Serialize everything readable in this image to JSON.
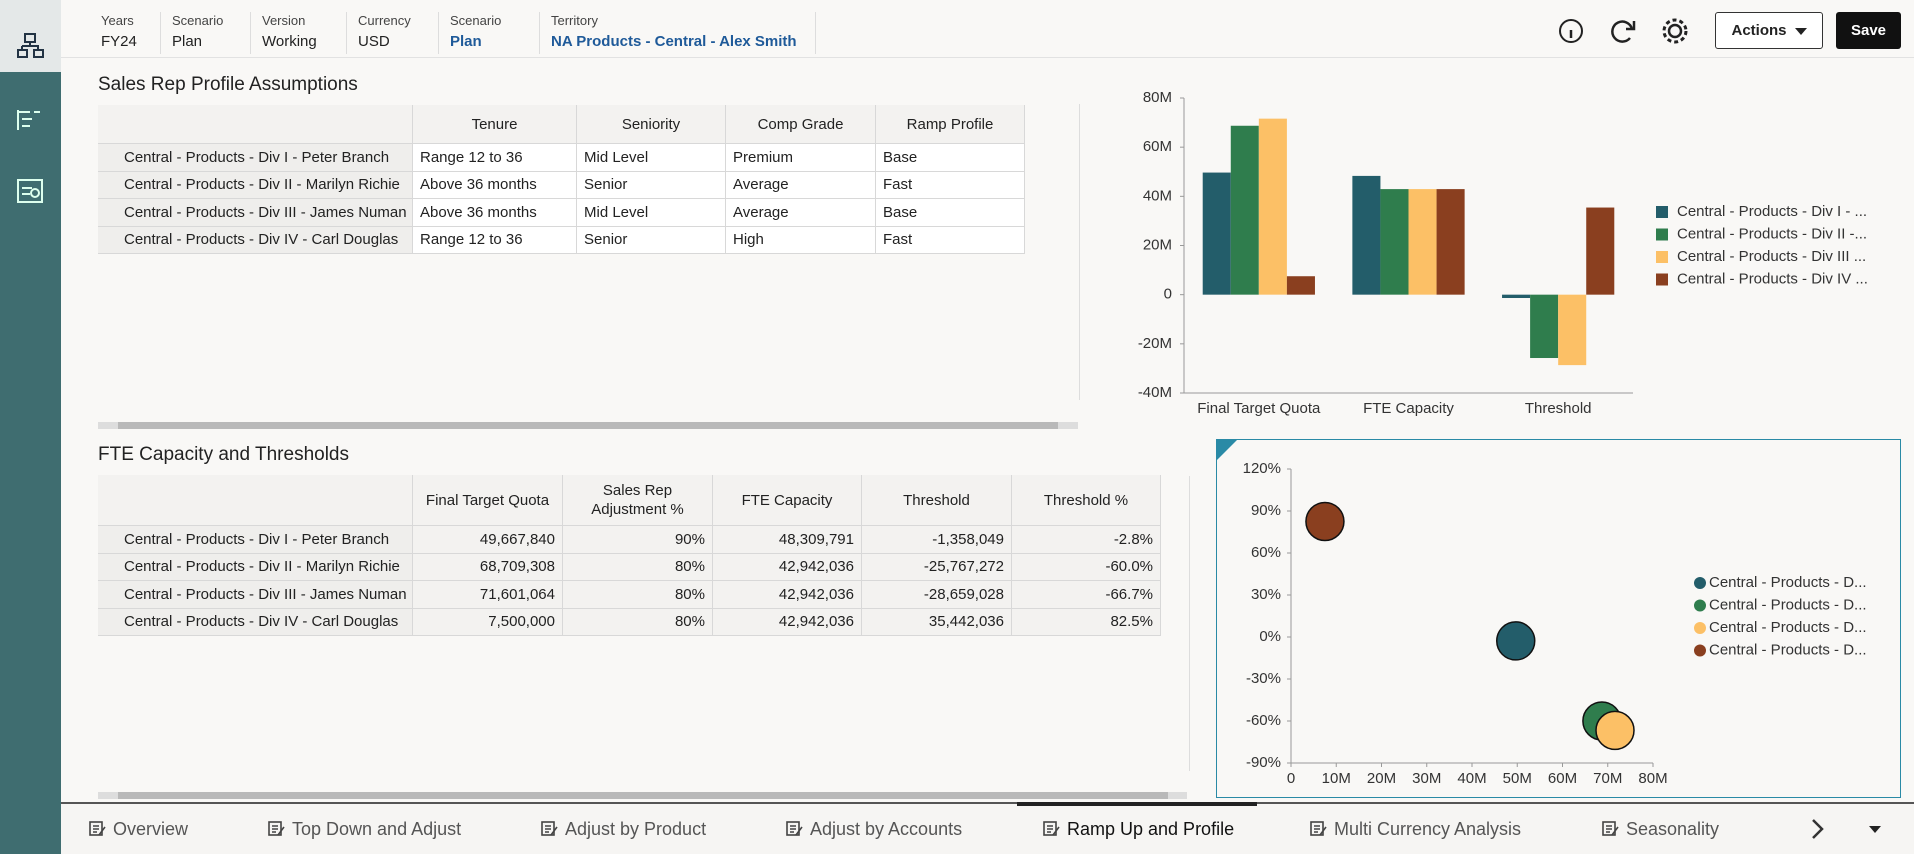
{
  "header": {
    "filters": [
      {
        "label": "Years",
        "value": "FY24"
      },
      {
        "label": "Scenario",
        "value": "Plan"
      },
      {
        "label": "Version",
        "value": "Working"
      },
      {
        "label": "Currency",
        "value": "USD"
      },
      {
        "label": "Scenario",
        "value": "Plan"
      },
      {
        "label": "Territory",
        "value": "NA Products - Central - Alex Smith"
      }
    ]
  },
  "buttons": {
    "actions": "Actions",
    "save": "Save"
  },
  "tables": [
    {
      "title": "Sales Rep Profile Assumptions",
      "columns": [
        "Tenure",
        "Seniority",
        "Comp Grade",
        "Ramp Profile"
      ],
      "rows": [
        {
          "label": "Central - Products - Div I - Peter Branch",
          "cells": [
            "Range 12 to 36",
            "Mid Level",
            "Premium",
            "Base"
          ]
        },
        {
          "label": "Central - Products - Div II - Marilyn Richie",
          "cells": [
            "Above 36 months",
            "Senior",
            "Average",
            "Fast"
          ]
        },
        {
          "label": "Central - Products - Div III - James Numan",
          "cells": [
            "Above 36 months",
            "Mid Level",
            "Average",
            "Base"
          ]
        },
        {
          "label": "Central - Products - Div IV - Carl Douglas",
          "cells": [
            "Range 12 to 36",
            "Senior",
            "High",
            "Fast"
          ]
        }
      ]
    },
    {
      "title": "FTE Capacity and Thresholds",
      "columns": [
        "Final Target Quota",
        "Sales Rep Adjustment %",
        "FTE Capacity",
        "Threshold",
        "Threshold %"
      ],
      "rows": [
        {
          "label": "Central - Products - Div I - Peter Branch",
          "cells": [
            "49,667,840",
            "90%",
            "48,309,791",
            "-1,358,049",
            "-2.8%"
          ]
        },
        {
          "label": "Central - Products - Div II - Marilyn Richie",
          "cells": [
            "68,709,308",
            "80%",
            "42,942,036",
            "-25,767,272",
            "-60.0%"
          ]
        },
        {
          "label": "Central - Products - Div III - James Numan",
          "cells": [
            "71,601,064",
            "80%",
            "42,942,036",
            "-28,659,028",
            "-66.7%"
          ]
        },
        {
          "label": "Central - Products - Div IV - Carl Douglas",
          "cells": [
            "7,500,000",
            "80%",
            "42,942,036",
            "35,442,036",
            "82.5%"
          ]
        }
      ]
    }
  ],
  "chart_data": [
    {
      "type": "bar",
      "categories": [
        "Final Target Quota",
        "FTE Capacity",
        "Threshold"
      ],
      "series": [
        {
          "name": "Central - Products - Div I - ...",
          "color": "#235d6a",
          "values": [
            49.66784,
            48.309791,
            -1.358049
          ]
        },
        {
          "name": "Central - Products - Div II -...",
          "color": "#2f7d4d",
          "values": [
            68.709308,
            42.942036,
            -25.767272
          ]
        },
        {
          "name": "Central - Products - Div III ...",
          "color": "#fcc066",
          "values": [
            71.601064,
            42.942036,
            -28.659028
          ]
        },
        {
          "name": "Central - Products - Div IV ...",
          "color": "#8a3f1f",
          "values": [
            7.5,
            42.942036,
            35.442036
          ]
        }
      ],
      "ylim": [
        -40,
        80
      ],
      "yticks": [
        {
          "value": 80,
          "label": "80M"
        },
        {
          "value": 60,
          "label": "60M"
        },
        {
          "value": 40,
          "label": "40M"
        },
        {
          "value": 20,
          "label": "20M"
        },
        0,
        {
          "value": -20,
          "label": "-20M"
        },
        {
          "value": -40,
          "label": "-40M"
        }
      ]
    },
    {
      "type": "scatter",
      "series": [
        {
          "name": "Central - Products - D...",
          "color": "#235d6a",
          "x": [
            49.66784
          ],
          "values": [
            -2.8
          ]
        },
        {
          "name": "Central - Products - D...",
          "color": "#2f7d4d",
          "x": [
            68.709308
          ],
          "values": [
            -60.0
          ]
        },
        {
          "name": "Central - Products - D...",
          "color": "#fcc066",
          "x": [
            71.601064
          ],
          "values": [
            -66.7
          ]
        },
        {
          "name": "Central - Products - D...",
          "color": "#8a3f1f",
          "x": [
            7.5
          ],
          "values": [
            82.5
          ]
        }
      ],
      "xlim": [
        0,
        80
      ],
      "xticks": [
        0,
        {
          "value": 10,
          "label": "10M"
        },
        {
          "value": 20,
          "label": "20M"
        },
        {
          "value": 30,
          "label": "30M"
        },
        {
          "value": 40,
          "label": "40M"
        },
        {
          "value": 50,
          "label": "50M"
        },
        {
          "value": 60,
          "label": "60M"
        },
        {
          "value": 70,
          "label": "70M"
        },
        {
          "value": 80,
          "label": "80M"
        }
      ],
      "ylim": [
        -90,
        120
      ],
      "yticks": [
        {
          "value": 120,
          "label": "120%"
        },
        {
          "value": 90,
          "label": "90%"
        },
        {
          "value": 60,
          "label": "60%"
        },
        {
          "value": 30,
          "label": "30%"
        },
        {
          "value": 0,
          "label": "0%"
        },
        {
          "value": -30,
          "label": "-30%"
        },
        {
          "value": -60,
          "label": "-60%"
        },
        {
          "value": -90,
          "label": "-90%"
        }
      ]
    }
  ],
  "tabs": {
    "items": [
      "Overview",
      "Top Down and Adjust",
      "Adjust by Product",
      "Adjust by Accounts",
      "Ramp Up and Profile",
      "Multi Currency Analysis",
      "Seasonality"
    ],
    "active": 4
  }
}
